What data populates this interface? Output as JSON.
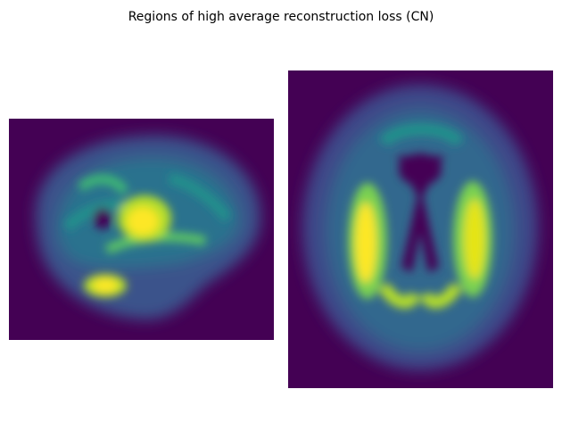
{
  "figure": {
    "title": "Regions of high average reconstruction loss (CN)"
  }
}
